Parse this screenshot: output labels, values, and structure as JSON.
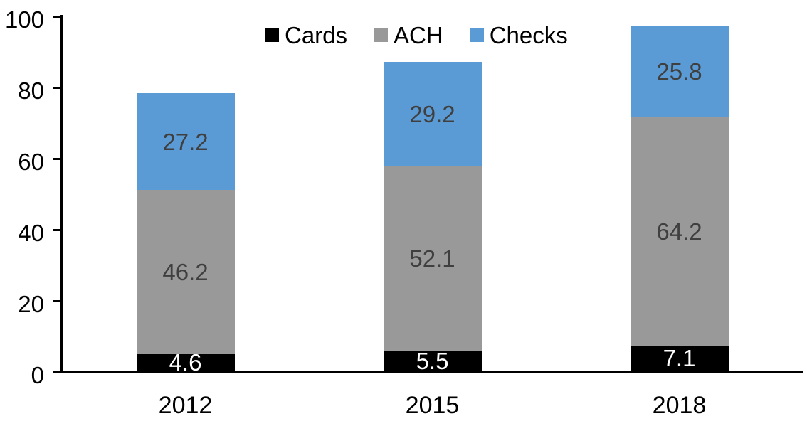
{
  "chart_data": {
    "type": "bar",
    "stacked": true,
    "title": "",
    "xlabel": "",
    "ylabel": "",
    "categories": [
      "2012",
      "2015",
      "2018"
    ],
    "series": [
      {
        "name": "Cards",
        "color": "#000000",
        "label_color": "#ffffff",
        "values": [
          4.6,
          5.5,
          7.1
        ]
      },
      {
        "name": "ACH",
        "color": "#999999",
        "label_color": "#3f3f3f",
        "values": [
          46.2,
          52.1,
          64.2
        ]
      },
      {
        "name": "Checks",
        "color": "#5b9bd5",
        "label_color": "#3f3f3f",
        "values": [
          27.2,
          29.2,
          25.8
        ]
      }
    ],
    "totals": [
      78.0,
      86.8,
      97.1
    ],
    "ylim": [
      0,
      100
    ],
    "yticks": [
      0,
      20,
      40,
      60,
      80,
      100
    ],
    "grid": false,
    "legend_position": "top-center",
    "axis_color": "#000000",
    "background_color": "#ffffff"
  }
}
